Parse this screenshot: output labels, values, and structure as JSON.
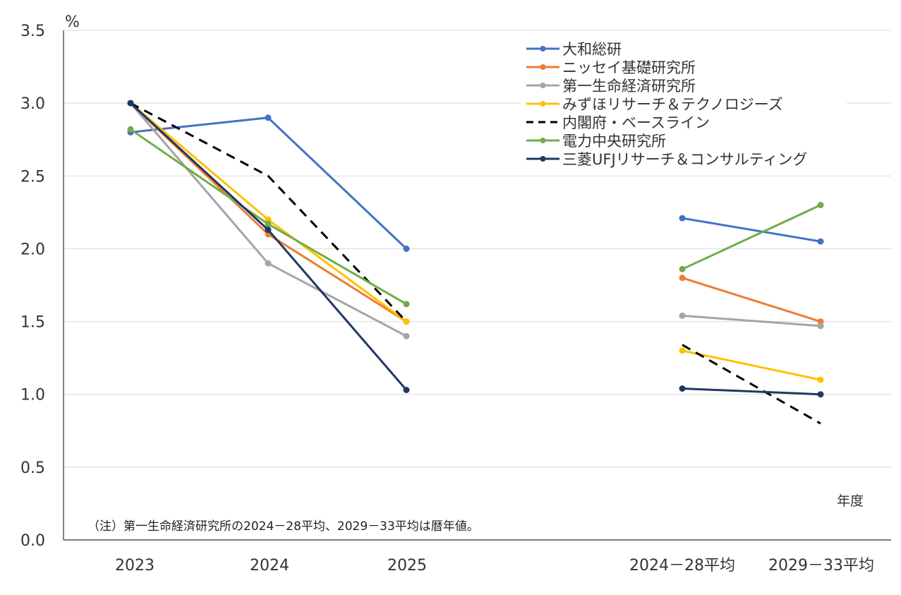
{
  "chart_data": {
    "type": "line",
    "y_unit": "%",
    "x_unit": "年度",
    "categories": [
      "2023",
      "2024",
      "2025",
      "2024－28平均",
      "2029－33平均"
    ],
    "ylim": [
      0.0,
      3.5
    ],
    "y_ticks": [
      "0.0",
      "0.5",
      "1.0",
      "1.5",
      "2.0",
      "2.5",
      "3.0",
      "3.5"
    ],
    "grid": "horizontal",
    "legend_position": "top-right",
    "note": "（注）第一生命経済研究所の2024－28平均、2029－33平均は暦年値。",
    "series": [
      {
        "name": "大和総研",
        "color": "#4472C4",
        "dash": false,
        "values": [
          2.8,
          2.9,
          2.0,
          2.21,
          2.05
        ]
      },
      {
        "name": "ニッセイ基礎研究所",
        "color": "#ED7D31",
        "dash": false,
        "values": [
          3.0,
          2.1,
          1.5,
          1.8,
          1.5
        ]
      },
      {
        "name": "第一生命経済研究所",
        "color": "#A5A5A5",
        "dash": false,
        "values": [
          3.0,
          1.9,
          1.4,
          1.54,
          1.47
        ]
      },
      {
        "name": "みずほリサーチ＆テクノロジーズ",
        "color": "#FFC000",
        "dash": false,
        "values": [
          3.0,
          2.2,
          1.5,
          1.3,
          1.1
        ]
      },
      {
        "name": "内閣府・ベースライン",
        "color": "#000000",
        "dash": true,
        "values": [
          3.0,
          2.5,
          1.5,
          1.34,
          0.8
        ]
      },
      {
        "name": "電力中央研究所",
        "color": "#70AD47",
        "dash": false,
        "values": [
          2.82,
          2.17,
          1.62,
          1.86,
          2.3
        ]
      },
      {
        "name": "三菱UFJリサーチ＆コンサルティング",
        "color": "#203864",
        "dash": false,
        "values": [
          3.0,
          2.13,
          1.03,
          1.04,
          1.0
        ]
      }
    ]
  }
}
